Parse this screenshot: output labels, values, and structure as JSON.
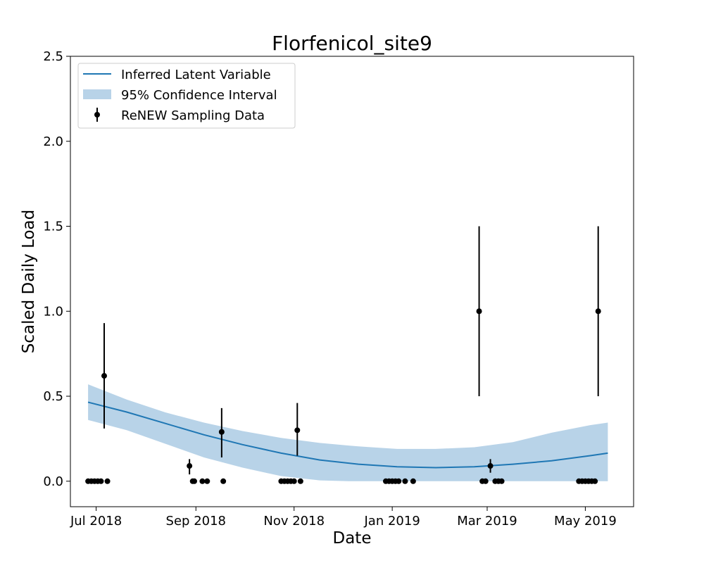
{
  "chart_data": {
    "type": "line",
    "title": "Florfenicol_site9",
    "xlabel": "Date",
    "ylabel": "Scaled Daily Load",
    "ylim": [
      -0.15,
      2.5
    ],
    "xlim": [
      "2018-06-15",
      "2019-05-31"
    ],
    "y_ticks": [
      0.0,
      0.5,
      1.0,
      1.5,
      2.0,
      2.5
    ],
    "y_tick_labels": [
      "0.0",
      "0.5",
      "1.0",
      "1.5",
      "2.0",
      "2.5"
    ],
    "x_ticks": [
      "2018-07-01",
      "2018-09-01",
      "2018-11-01",
      "2019-01-01",
      "2019-03-01",
      "2019-05-01"
    ],
    "x_tick_labels": [
      "Jul 2018",
      "Sep 2018",
      "Nov 2018",
      "Jan 2019",
      "Mar 2019",
      "May 2019"
    ],
    "grid": false,
    "legend": {
      "placement": "upper-left",
      "entries": [
        "Inferred Latent Variable",
        "95% Confidence Interval",
        "ReNEW Sampling Data"
      ]
    },
    "colors": {
      "line": "#1f77b4",
      "band": "#b8d3e8",
      "points": "#000000"
    },
    "series": [
      {
        "name": "Inferred Latent Variable",
        "kind": "line",
        "x": [
          "2018-06-26",
          "2018-07-20",
          "2018-08-13",
          "2018-09-06",
          "2018-09-30",
          "2018-10-24",
          "2018-11-17",
          "2018-12-11",
          "2019-01-04",
          "2019-01-28",
          "2019-02-21",
          "2019-03-17",
          "2019-04-10",
          "2019-05-04",
          "2019-05-15"
        ],
        "y": [
          0.465,
          0.407,
          0.34,
          0.273,
          0.215,
          0.165,
          0.125,
          0.1,
          0.085,
          0.08,
          0.085,
          0.1,
          0.12,
          0.15,
          0.165
        ]
      },
      {
        "name": "95% Confidence Interval",
        "kind": "band",
        "x": [
          "2018-06-26",
          "2018-07-20",
          "2018-08-13",
          "2018-09-06",
          "2018-09-30",
          "2018-10-24",
          "2018-11-17",
          "2018-12-05",
          "2018-12-11",
          "2019-01-04",
          "2019-01-28",
          "2019-02-21",
          "2019-03-17",
          "2019-04-10",
          "2019-05-04",
          "2019-05-15"
        ],
        "lower": [
          0.36,
          0.3,
          0.22,
          0.14,
          0.08,
          0.03,
          0.005,
          0.0,
          0.0,
          0.0,
          0.0,
          0.0,
          0.0,
          0.0,
          0.0,
          0.0
        ],
        "upper": [
          0.57,
          0.48,
          0.405,
          0.345,
          0.295,
          0.255,
          0.225,
          0.21,
          0.205,
          0.19,
          0.19,
          0.2,
          0.23,
          0.285,
          0.33,
          0.345
        ]
      },
      {
        "name": "ReNEW Sampling Data",
        "kind": "errorbar",
        "points": [
          {
            "x": "2018-06-26",
            "y": 0.0
          },
          {
            "x": "2018-06-28",
            "y": 0.0
          },
          {
            "x": "2018-06-30",
            "y": 0.0
          },
          {
            "x": "2018-07-02",
            "y": 0.0
          },
          {
            "x": "2018-07-04",
            "y": 0.0
          },
          {
            "x": "2018-07-06",
            "y": 0.62,
            "err_low": 0.31,
            "err_high": 0.93
          },
          {
            "x": "2018-07-08",
            "y": 0.0
          },
          {
            "x": "2018-08-28",
            "y": 0.09,
            "err_low": 0.04,
            "err_high": 0.13
          },
          {
            "x": "2018-08-30",
            "y": 0.0
          },
          {
            "x": "2018-08-31",
            "y": 0.0
          },
          {
            "x": "2018-09-05",
            "y": 0.0
          },
          {
            "x": "2018-09-08",
            "y": 0.0
          },
          {
            "x": "2018-09-17",
            "y": 0.29,
            "err_low": 0.14,
            "err_high": 0.43
          },
          {
            "x": "2018-09-18",
            "y": 0.0
          },
          {
            "x": "2018-10-24",
            "y": 0.0
          },
          {
            "x": "2018-10-26",
            "y": 0.0
          },
          {
            "x": "2018-10-28",
            "y": 0.0
          },
          {
            "x": "2018-10-30",
            "y": 0.0
          },
          {
            "x": "2018-11-01",
            "y": 0.0
          },
          {
            "x": "2018-11-03",
            "y": 0.3,
            "err_low": 0.15,
            "err_high": 0.46
          },
          {
            "x": "2018-11-05",
            "y": 0.0
          },
          {
            "x": "2018-12-28",
            "y": 0.0
          },
          {
            "x": "2018-12-30",
            "y": 0.0
          },
          {
            "x": "2019-01-01",
            "y": 0.0
          },
          {
            "x": "2019-01-03",
            "y": 0.0
          },
          {
            "x": "2019-01-05",
            "y": 0.0
          },
          {
            "x": "2019-01-09",
            "y": 0.0
          },
          {
            "x": "2019-01-14",
            "y": 0.0
          },
          {
            "x": "2019-02-24",
            "y": 1.0,
            "err_low": 0.5,
            "err_high": 1.5
          },
          {
            "x": "2019-02-26",
            "y": 0.0
          },
          {
            "x": "2019-02-28",
            "y": 0.0
          },
          {
            "x": "2019-03-03",
            "y": 0.09,
            "err_low": 0.05,
            "err_high": 0.13
          },
          {
            "x": "2019-03-06",
            "y": 0.0
          },
          {
            "x": "2019-03-08",
            "y": 0.0
          },
          {
            "x": "2019-03-10",
            "y": 0.0
          },
          {
            "x": "2019-04-27",
            "y": 0.0
          },
          {
            "x": "2019-04-29",
            "y": 0.0
          },
          {
            "x": "2019-05-01",
            "y": 0.0
          },
          {
            "x": "2019-05-03",
            "y": 0.0
          },
          {
            "x": "2019-05-05",
            "y": 0.0
          },
          {
            "x": "2019-05-07",
            "y": 0.0
          },
          {
            "x": "2019-05-09",
            "y": 1.0,
            "err_low": 0.5,
            "err_high": 1.5
          }
        ]
      }
    ]
  }
}
